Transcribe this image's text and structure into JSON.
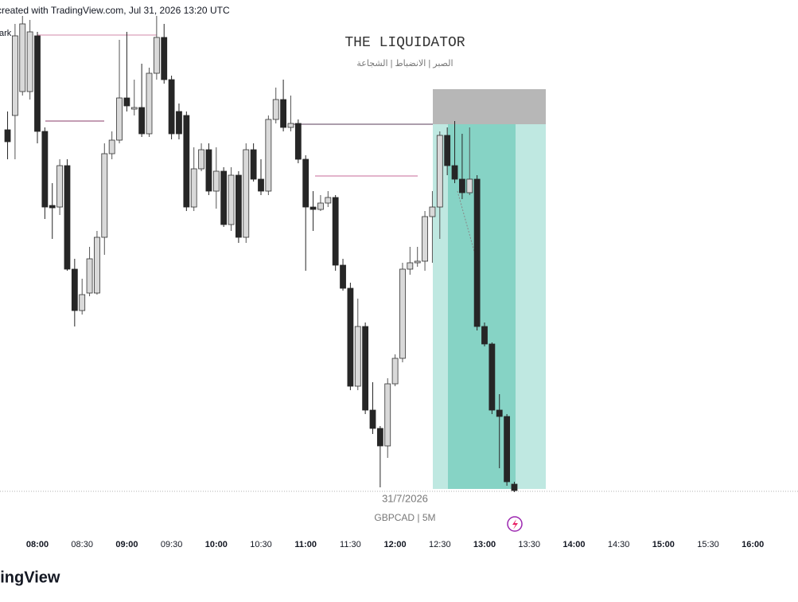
{
  "chart_data": {
    "type": "candlestick",
    "header": "created with TradingView.com, Jul 31, 2026 13:20 UTC",
    "corner_text": "ark",
    "title": "THE LIQUIDATOR",
    "subtitle": "الصبر | الانضباط | الشجاعة",
    "date": "31/7/2026",
    "symbol": "GBPCAD | 5M",
    "brand": "TradingView",
    "up_color": "#d9d9d9",
    "down_color": "#262626",
    "x": [
      "07:40",
      "07:45",
      "07:50",
      "07:55",
      "08:00",
      "08:05",
      "08:10",
      "08:15",
      "08:20",
      "08:25",
      "08:30",
      "08:35",
      "08:40",
      "08:45",
      "08:50",
      "08:55",
      "09:00",
      "09:05",
      "09:10",
      "09:15",
      "09:20",
      "09:25",
      "09:30",
      "09:35",
      "09:40",
      "09:45",
      "09:50",
      "09:55",
      "10:00",
      "10:05",
      "10:10",
      "10:15",
      "10:20",
      "10:25",
      "10:30",
      "10:35",
      "10:40",
      "10:45",
      "10:50",
      "10:55",
      "11:00",
      "11:05",
      "11:10",
      "11:15",
      "11:20",
      "11:25",
      "11:30",
      "11:35",
      "11:40",
      "11:45",
      "11:50",
      "11:55",
      "12:00",
      "12:05",
      "12:10",
      "12:15",
      "12:20",
      "12:25",
      "12:30",
      "12:35",
      "12:40",
      "12:45",
      "12:50",
      "12:55",
      "13:00",
      "13:05",
      "13:10",
      "13:15",
      "13:20"
    ],
    "open": [
      477,
      495,
      525,
      525,
      595,
      475,
      382,
      380,
      432,
      302,
      250,
      272,
      272,
      342,
      447,
      464,
      517,
      503,
      505,
      472,
      548,
      593,
      540,
      500,
      495,
      380,
      428,
      452,
      400,
      425,
      358,
      420,
      342,
      452,
      415,
      400,
      490,
      515,
      480,
      485,
      440,
      380,
      377,
      385,
      392,
      307,
      278,
      155,
      230,
      125,
      102,
      80,
      158,
      190,
      302,
      310,
      312,
      368,
      380,
      470,
      432,
      415,
      398,
      415,
      230,
      208,
      125,
      117,
      32
    ],
    "high": [
      500,
      610,
      620,
      615,
      600,
      480,
      410,
      440,
      440,
      315,
      290,
      330,
      350,
      460,
      475,
      590,
      600,
      540,
      560,
      555,
      620,
      610,
      545,
      510,
      500,
      455,
      460,
      460,
      455,
      430,
      430,
      425,
      460,
      460,
      440,
      495,
      530,
      540,
      520,
      490,
      445,
      400,
      395,
      400,
      395,
      315,
      285,
      265,
      235,
      160,
      105,
      165,
      195,
      310,
      330,
      330,
      375,
      400,
      475,
      480,
      488,
      472,
      480,
      420,
      235,
      210,
      145,
      120,
      35
    ],
    "low": [
      440,
      440,
      520,
      515,
      460,
      365,
      340,
      370,
      300,
      230,
      245,
      268,
      270,
      320,
      440,
      460,
      500,
      495,
      468,
      468,
      540,
      535,
      465,
      465,
      375,
      375,
      425,
      395,
      378,
      355,
      350,
      335,
      335,
      412,
      395,
      395,
      485,
      475,
      475,
      435,
      300,
      350,
      375,
      380,
      300,
      275,
      150,
      150,
      120,
      95,
      28,
      65,
      155,
      185,
      295,
      305,
      300,
      310,
      340,
      420,
      410,
      390,
      395,
      225,
      205,
      120,
      52,
      30,
      22
    ],
    "close": [
      462,
      595,
      610,
      600,
      475,
      380,
      379,
      432,
      302,
      250,
      270,
      315,
      342,
      447,
      464,
      517,
      507,
      505,
      472,
      548,
      593,
      540,
      472,
      472,
      380,
      428,
      452,
      400,
      425,
      358,
      420,
      342,
      452,
      415,
      400,
      490,
      515,
      480,
      485,
      440,
      380,
      377,
      385,
      392,
      307,
      278,
      155,
      230,
      125,
      102,
      80,
      158,
      190,
      302,
      310,
      312,
      368,
      380,
      470,
      432,
      415,
      398,
      415,
      230,
      208,
      125,
      117,
      35,
      24
    ],
    "ylim": [
      0,
      640
    ],
    "xticks": [
      "08:00",
      "08:30",
      "09:00",
      "09:30",
      "10:00",
      "10:30",
      "11:00",
      "11:30",
      "12:00",
      "12:30",
      "13:00",
      "13:30",
      "14:00",
      "14:30",
      "15:00",
      "15:30",
      "16:00"
    ]
  }
}
